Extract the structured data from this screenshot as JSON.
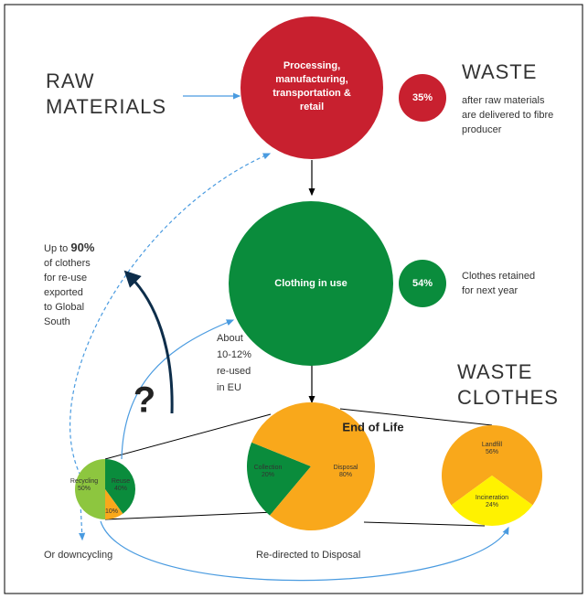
{
  "header": {
    "raw_materials": [
      "RAW",
      "MATERIALS"
    ],
    "waste": "WASTE",
    "waste_clothes": [
      "WASTE",
      "CLOTHES"
    ]
  },
  "process": {
    "lines": [
      "Processing,",
      "manufacturing,",
      "transportation &",
      "retail"
    ]
  },
  "waste_stat": {
    "value": "35%",
    "lines": [
      "after raw materials",
      "are delivered to fibre",
      "producer"
    ]
  },
  "in_use": {
    "label": "Clothing in use",
    "value": "54%",
    "lines": [
      "Clothes retained",
      "for next year"
    ]
  },
  "left_note": {
    "prefix": "Up to ",
    "highlight": "90%",
    "lines": [
      "of clothers",
      "for re-use",
      "exported",
      "to Global",
      "South"
    ]
  },
  "question": "?",
  "eu_note": [
    "About",
    "10-12%",
    "re-used",
    "in EU"
  ],
  "end_of_life": "End of Life",
  "footer": {
    "left": "Or downcycling",
    "middle": "Re-directed to Disposal"
  },
  "pies": [
    {
      "labels": [
        "Recycling",
        "Reuse",
        null
      ],
      "values": [
        50,
        40,
        10
      ],
      "value_labels": [
        "50%",
        "40%",
        "10%"
      ],
      "colors": [
        "#8dc63f",
        "#0a8c3c",
        "#f9a81b"
      ]
    },
    {
      "labels": [
        "Collection",
        "Disposal"
      ],
      "values": [
        20,
        80
      ],
      "value_labels": [
        "20%",
        "80%"
      ],
      "colors": [
        "#0a8c3c",
        "#f9a81b"
      ]
    },
    {
      "labels": [
        "Landfill",
        "Incineration"
      ],
      "values": [
        56,
        24
      ],
      "value_labels": [
        "56%",
        "24%"
      ],
      "colors": [
        "#f9a81b",
        "#fff200"
      ]
    }
  ]
}
